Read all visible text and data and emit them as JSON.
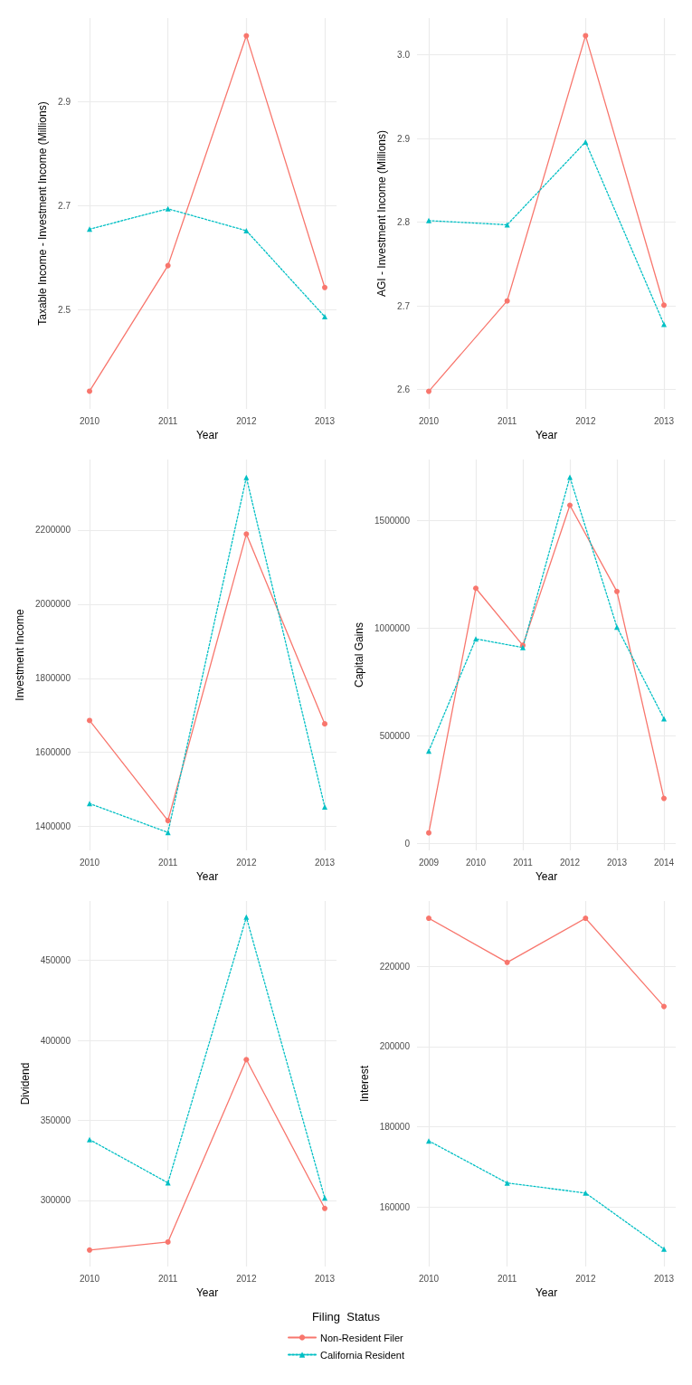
{
  "chart_data": [
    {
      "type": "line",
      "xlabel": "Year",
      "ylabel": "Taxable Income - Investment Income (Millions)",
      "x": [
        2010,
        2011,
        2012,
        2013
      ],
      "xlim": [
        2009.85,
        2013.15
      ],
      "xticks": [
        2010,
        2011,
        2012,
        2013
      ],
      "ylim": [
        2.31,
        3.06
      ],
      "yticks": [
        2.5,
        2.7,
        2.9
      ],
      "grid": true,
      "legend": "bottom",
      "legend_title": "Filing  Status",
      "series": [
        {
          "name": "Non-Resident Filer",
          "color": "#f8766d",
          "marker": "circle",
          "line_style": "solid",
          "values": [
            2.344,
            2.585,
            3.026,
            2.543
          ]
        },
        {
          "name": "California Resident",
          "color": "#00bfc4",
          "marker": "triangle",
          "line_style": "dotted",
          "values": [
            2.655,
            2.694,
            2.652,
            2.487
          ]
        }
      ]
    },
    {
      "type": "line",
      "xlabel": "Year",
      "ylabel": "AGI - Investment Income (Millions)",
      "x": [
        2010,
        2011,
        2012,
        2013
      ],
      "xlim": [
        2009.85,
        2013.15
      ],
      "xticks": [
        2010,
        2011,
        2012,
        2013
      ],
      "ylim": [
        2.577,
        3.044
      ],
      "yticks": [
        2.6,
        2.7,
        2.8,
        2.9,
        {
          "value": 3,
          "label": "3.0"
        }
      ],
      "grid": true,
      "series": [
        {
          "color": "#f8766d",
          "marker": "circle",
          "line_style": "solid",
          "values": [
            2.598,
            2.706,
            3.023,
            2.701
          ]
        },
        {
          "color": "#00bfc4",
          "marker": "triangle",
          "line_style": "dotted",
          "values": [
            2.802,
            2.797,
            2.896,
            2.678
          ]
        }
      ]
    },
    {
      "type": "line",
      "xlabel": "Year",
      "ylabel": "Investment Income",
      "x": [
        2010,
        2011,
        2012,
        2013
      ],
      "xlim": [
        2009.85,
        2013.15
      ],
      "xticks": [
        2010,
        2011,
        2012,
        2013
      ],
      "ylim": [
        1335700,
        2390000
      ],
      "yticks": [
        1400000,
        1600000,
        1800000,
        2000000,
        2200000
      ],
      "grid": true,
      "series": [
        {
          "color": "#f8766d",
          "marker": "circle",
          "line_style": "solid",
          "values": [
            1686000,
            1416000,
            2189000,
            1677000
          ]
        },
        {
          "color": "#00bfc4",
          "marker": "triangle",
          "line_style": "dotted",
          "values": [
            1462000,
            1384000,
            2342000,
            1453000
          ]
        }
      ]
    },
    {
      "type": "line",
      "xlabel": "Year",
      "ylabel": "Capital Gains",
      "x": [
        2009,
        2010,
        2011,
        2012,
        2013,
        2014
      ],
      "xlim": [
        2008.75,
        2014.25
      ],
      "xticks": [
        2009,
        2010,
        2011,
        2012,
        2013,
        2014
      ],
      "ylim": [
        -31000,
        1782000
      ],
      "yticks": [
        0,
        500000,
        1000000,
        1500000
      ],
      "grid": true,
      "series": [
        {
          "color": "#f8766d",
          "marker": "circle",
          "line_style": "solid",
          "values": [
            50000,
            1185000,
            920000,
            1570000,
            1170000,
            210000
          ]
        },
        {
          "color": "#00bfc4",
          "marker": "triangle",
          "line_style": "dotted",
          "values": [
            430000,
            950000,
            910000,
            1700000,
            1005000,
            580000
          ]
        }
      ]
    },
    {
      "type": "line",
      "xlabel": "Year",
      "ylabel": "Dividend",
      "x": [
        2010,
        2011,
        2012,
        2013
      ],
      "xlim": [
        2009.85,
        2013.15
      ],
      "xticks": [
        2010,
        2011,
        2012,
        2013
      ],
      "ylim": [
        258700,
        487100
      ],
      "yticks": [
        300000,
        350000,
        400000,
        450000
      ],
      "grid": true,
      "series": [
        {
          "color": "#f8766d",
          "marker": "circle",
          "line_style": "solid",
          "values": [
            269000,
            274000,
            388000,
            295000
          ]
        },
        {
          "color": "#00bfc4",
          "marker": "triangle",
          "line_style": "dotted",
          "values": [
            338000,
            311000,
            477000,
            301500
          ]
        }
      ]
    },
    {
      "type": "line",
      "xlabel": "Year",
      "ylabel": "Interest",
      "x": [
        2010,
        2011,
        2012,
        2013
      ],
      "xlim": [
        2009.85,
        2013.15
      ],
      "xticks": [
        2010,
        2011,
        2012,
        2013
      ],
      "ylim": [
        145180,
        236300
      ],
      "yticks": [
        160000,
        180000,
        200000,
        220000
      ],
      "grid": true,
      "series": [
        {
          "color": "#f8766d",
          "marker": "circle",
          "line_style": "solid",
          "values": [
            232000,
            221000,
            232000,
            210000
          ]
        },
        {
          "color": "#00bfc4",
          "marker": "triangle",
          "line_style": "dotted",
          "values": [
            176500,
            166000,
            163500,
            149500
          ]
        }
      ]
    }
  ]
}
